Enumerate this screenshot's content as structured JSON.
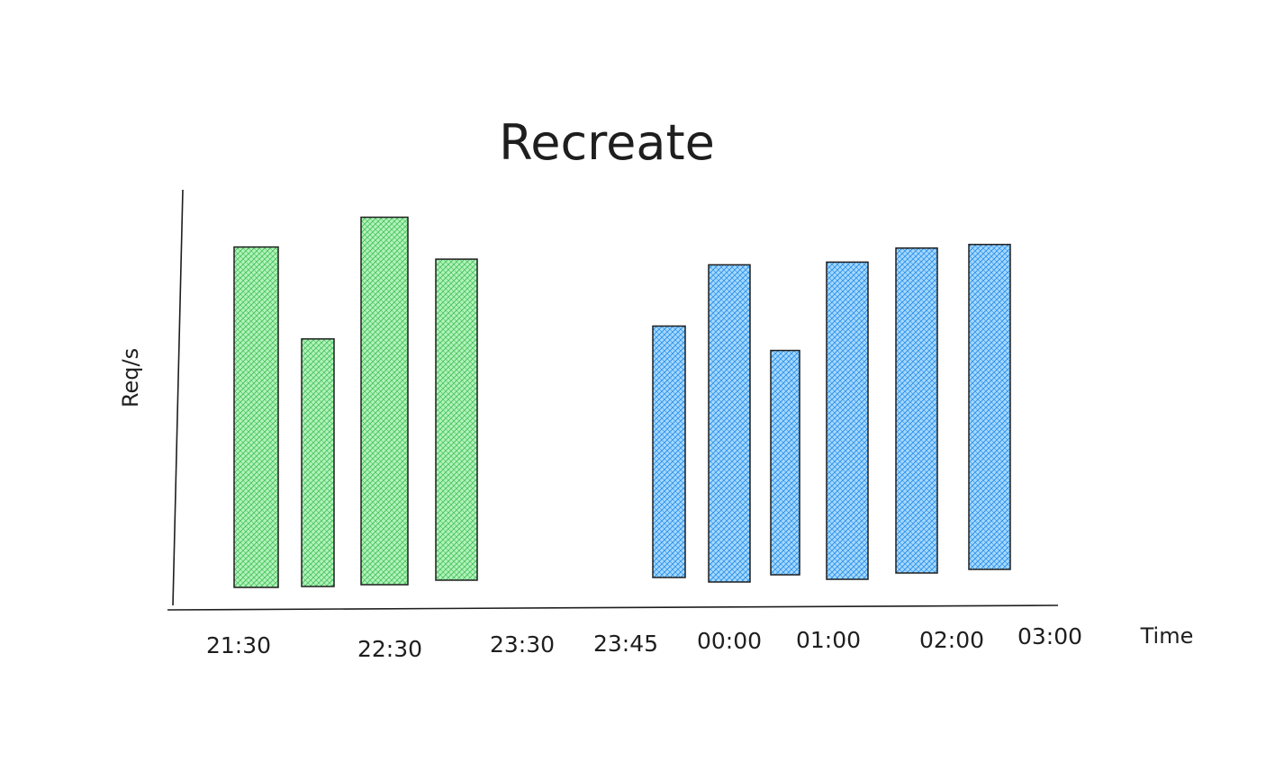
{
  "chart_data": {
    "type": "bar",
    "title": "Recreate",
    "xlabel": "Time",
    "ylabel": "Req/s",
    "x_tick_labels": [
      "21:30",
      "22:30",
      "23:30",
      "23:45",
      "00:00",
      "01:00",
      "02:00",
      "03:00"
    ],
    "ylim": [
      0,
      100
    ],
    "grid": false,
    "legend": "none",
    "series": [
      {
        "color": "#40c057",
        "values": [
          88,
          64,
          95,
          83
        ]
      },
      {
        "color": "#228be6",
        "values": [
          65,
          82,
          58,
          82,
          84,
          84
        ]
      }
    ]
  }
}
